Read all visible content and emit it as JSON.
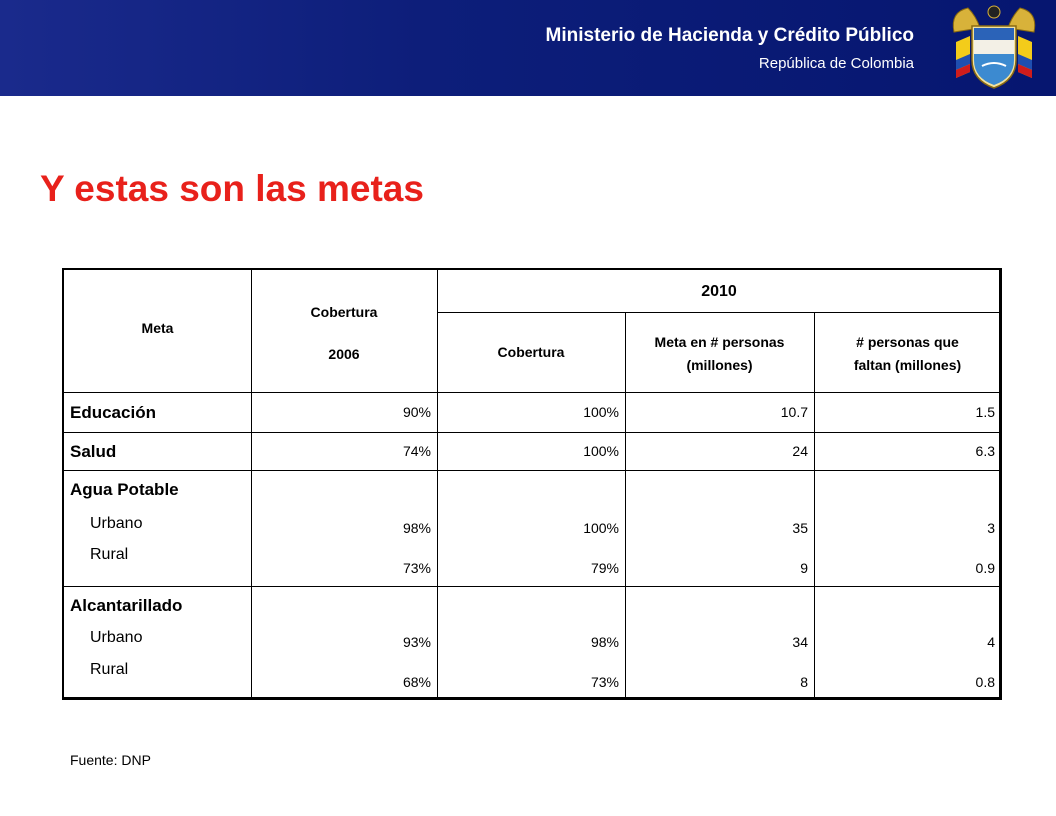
{
  "header": {
    "organization": "Ministerio de Hacienda y Crédito Público",
    "country": "República de Colombia",
    "logo": "colombia-coat-of-arms"
  },
  "title": "Y estas son las metas",
  "table": {
    "headers": {
      "meta": "Meta",
      "cobertura_2006_line1": "Cobertura",
      "cobertura_2006_line2": "2006",
      "year_2010": "2010",
      "cobertura_2010": "Cobertura",
      "meta_personas_line1": "Meta en # personas",
      "meta_personas_line2": "(millones)",
      "faltan_line1": "# personas que",
      "faltan_line2": "faltan (millones)"
    },
    "rows": {
      "educacion": {
        "label": "Educación",
        "cob2006": "90%",
        "cob2010": "100%",
        "meta": "10.7",
        "faltan": "1.5"
      },
      "salud": {
        "label": "Salud",
        "cob2006": "74%",
        "cob2010": "100%",
        "meta": "24",
        "faltan": "6.3"
      },
      "agua": {
        "label": "Agua Potable",
        "urbano": {
          "label": "Urbano",
          "cob2006": "98%",
          "cob2010": "100%",
          "meta": "35",
          "faltan": "3"
        },
        "rural": {
          "label": "Rural",
          "cob2006": "73%",
          "cob2010": "79%",
          "meta": "9",
          "faltan": "0.9"
        }
      },
      "alcantarillado": {
        "label": "Alcantarillado",
        "urbano": {
          "label": "Urbano",
          "cob2006": "93%",
          "cob2010": "98%",
          "meta": "34",
          "faltan": "4"
        },
        "rural": {
          "label": "Rural",
          "cob2006": "68%",
          "cob2010": "73%",
          "meta": "8",
          "faltan": "0.8"
        }
      }
    }
  },
  "source": "Fuente: DNP",
  "colors": {
    "header_band": "#0d1e7a",
    "title": "#e8211b"
  }
}
